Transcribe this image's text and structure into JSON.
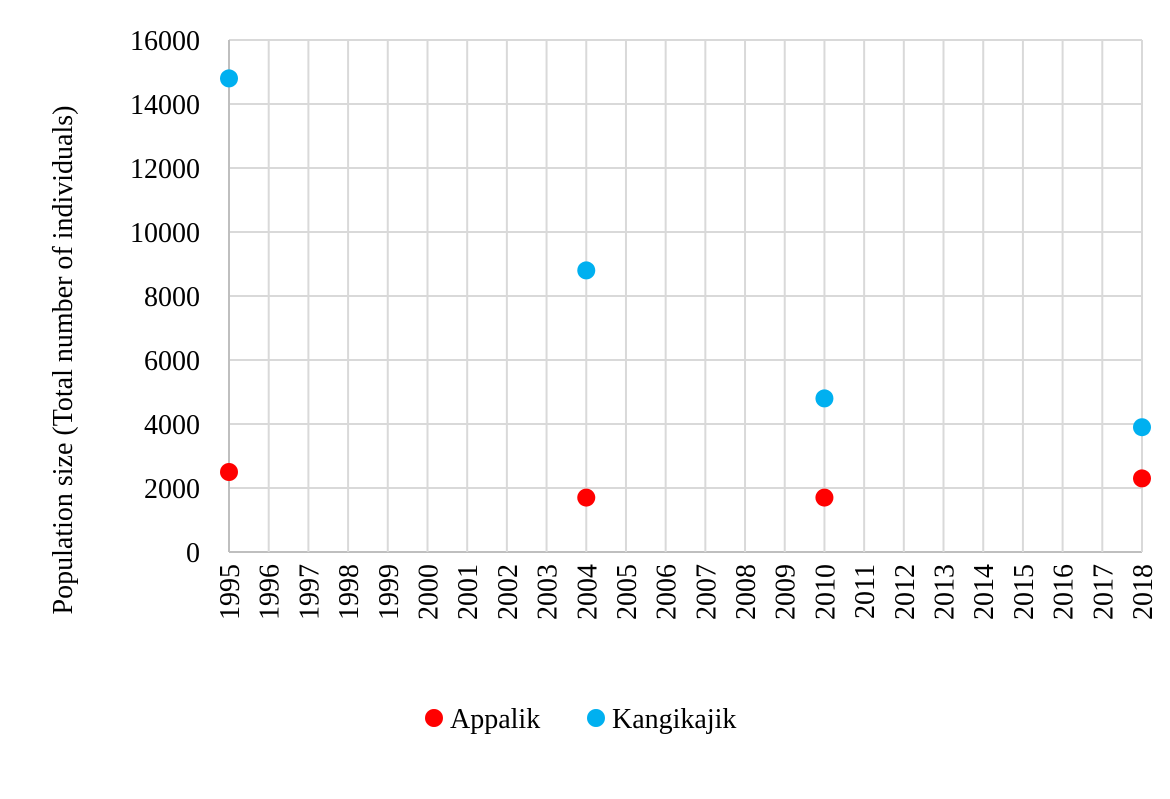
{
  "chart_data": {
    "type": "scatter",
    "title": "",
    "xlabel": "",
    "ylabel": "Population size (Total number of individuals)",
    "xlim": [
      1995,
      2018
    ],
    "ylim": [
      0,
      16000
    ],
    "x_ticks": [
      "1995",
      "1996",
      "1997",
      "1998",
      "1999",
      "2000",
      "2001",
      "2002",
      "2003",
      "2004",
      "2005",
      "2006",
      "2007",
      "2008",
      "2009",
      "2010",
      "2011",
      "2012",
      "2013",
      "2014",
      "2015",
      "2016",
      "2017",
      "2018"
    ],
    "y_ticks": [
      0,
      2000,
      4000,
      6000,
      8000,
      10000,
      12000,
      14000,
      16000
    ],
    "grid": true,
    "legend_position": "bottom",
    "series": [
      {
        "name": "Appalik",
        "color": "#ff0000",
        "x": [
          1995,
          2004,
          2010,
          2018
        ],
        "y": [
          2500,
          1700,
          1700,
          2300
        ]
      },
      {
        "name": "Kangikajik",
        "color": "#00b0f0",
        "x": [
          1995,
          2004,
          2010,
          2018
        ],
        "y": [
          14800,
          8800,
          4800,
          3900
        ]
      }
    ]
  }
}
